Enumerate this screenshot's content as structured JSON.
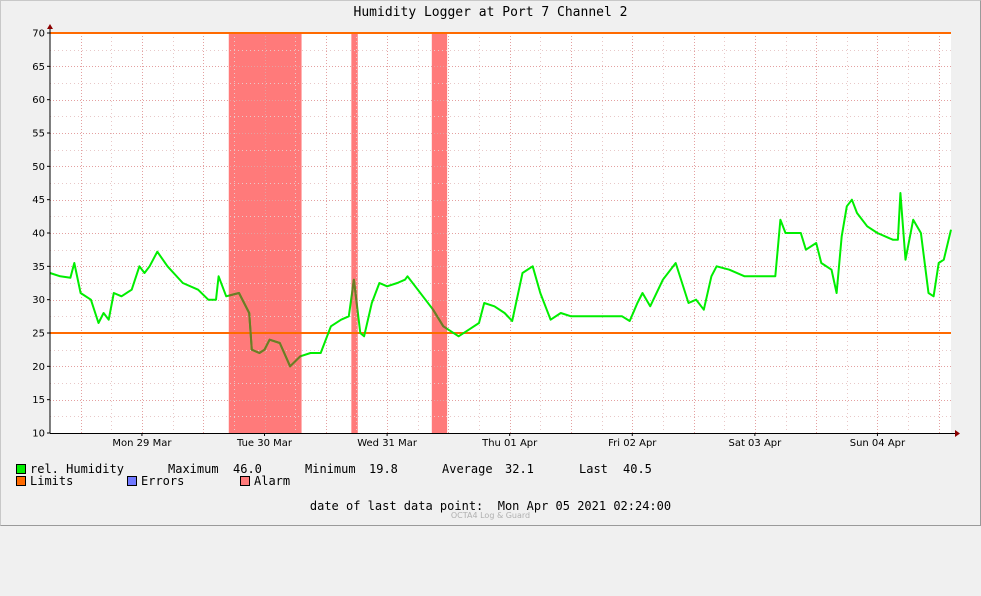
{
  "window": {
    "title": "Humidity Logger at Port 7 Channel 2"
  },
  "chart_data": {
    "type": "line",
    "title": "Humidity Logger at Port 7 Channel 2",
    "xlabel": "",
    "ylabel": "",
    "x_range": [
      "2021-03-28 18:00",
      "2021-04-05 02:24"
    ],
    "ylim": [
      10,
      70
    ],
    "y_ticks": [
      10,
      15,
      20,
      25,
      30,
      35,
      40,
      45,
      50,
      55,
      60,
      65,
      70
    ],
    "x_ticks": [
      {
        "label": "Mon 29 Mar",
        "at": "2021-03-29 12:00"
      },
      {
        "label": "Tue 30 Mar",
        "at": "2021-03-30 12:00"
      },
      {
        "label": "Wed 31 Mar",
        "at": "2021-03-31 12:00"
      },
      {
        "label": "Thu 01 Apr",
        "at": "2021-04-01 12:00"
      },
      {
        "label": "Fri 02 Apr",
        "at": "2021-04-02 12:00"
      },
      {
        "label": "Sat 03 Apr",
        "at": "2021-04-03 12:00"
      },
      {
        "label": "Sun 04 Apr",
        "at": "2021-04-04 12:00"
      }
    ],
    "grid": true,
    "legend_position": "bottom-left",
    "colors": {
      "humidity": "#00ee00",
      "humidity_in_alarm": "#6e7a26",
      "limits": "#ff6a00",
      "errors": "#7078ff",
      "alarm": "#ff7a7a",
      "grid_major": "#e4a0a0",
      "grid_minor": "#e8c8c8",
      "axis": "#000000",
      "arrow": "#8b0000",
      "plot_bg": "#ffffff"
    },
    "limits": [
      25,
      70
    ],
    "alarm_periods": [
      [
        "2021-03-30 05:00",
        "2021-03-30 19:15"
      ],
      [
        "2021-03-31 05:00",
        "2021-03-31 06:15"
      ],
      [
        "2021-03-31 20:45",
        "2021-03-31 23:45"
      ]
    ],
    "series": [
      {
        "name": "rel. Humidity",
        "points": [
          [
            "2021-03-28 18:00",
            34.0
          ],
          [
            "2021-03-28 20:00",
            33.5
          ],
          [
            "2021-03-28 22:00",
            33.3
          ],
          [
            "2021-03-28 22:45",
            35.5
          ],
          [
            "2021-03-29 00:00",
            31.0
          ],
          [
            "2021-03-29 02:00",
            30.0
          ],
          [
            "2021-03-29 03:30",
            26.5
          ],
          [
            "2021-03-29 04:30",
            28.0
          ],
          [
            "2021-03-29 05:30",
            27.0
          ],
          [
            "2021-03-29 06:30",
            31.0
          ],
          [
            "2021-03-29 08:00",
            30.5
          ],
          [
            "2021-03-29 10:00",
            31.5
          ],
          [
            "2021-03-29 11:30",
            35.0
          ],
          [
            "2021-03-29 12:30",
            34.0
          ],
          [
            "2021-03-29 13:30",
            35.0
          ],
          [
            "2021-03-29 15:00",
            37.2
          ],
          [
            "2021-03-29 17:00",
            35.0
          ],
          [
            "2021-03-29 20:00",
            32.5
          ],
          [
            "2021-03-29 23:00",
            31.5
          ],
          [
            "2021-03-30 01:00",
            30.0
          ],
          [
            "2021-03-30 02:30",
            30.0
          ],
          [
            "2021-03-30 03:00",
            33.5
          ],
          [
            "2021-03-30 04:30",
            30.5
          ],
          [
            "2021-03-30 07:00",
            31.0
          ],
          [
            "2021-03-30 09:00",
            28.0
          ],
          [
            "2021-03-30 09:30",
            22.5
          ],
          [
            "2021-03-30 11:00",
            22.0
          ],
          [
            "2021-03-30 12:00",
            22.5
          ],
          [
            "2021-03-30 13:00",
            24.0
          ],
          [
            "2021-03-30 15:00",
            23.5
          ],
          [
            "2021-03-30 17:00",
            20.0
          ],
          [
            "2021-03-30 19:00",
            21.5
          ],
          [
            "2021-03-30 21:00",
            22.0
          ],
          [
            "2021-03-30 23:00",
            22.0
          ],
          [
            "2021-03-31 01:00",
            26.0
          ],
          [
            "2021-03-31 03:00",
            27.0
          ],
          [
            "2021-03-31 04:30",
            27.5
          ],
          [
            "2021-03-31 05:30",
            33.0
          ],
          [
            "2021-03-31 06:45",
            25.0
          ],
          [
            "2021-03-31 07:30",
            24.5
          ],
          [
            "2021-03-31 09:00",
            29.5
          ],
          [
            "2021-03-31 10:30",
            32.5
          ],
          [
            "2021-03-31 12:00",
            32.0
          ],
          [
            "2021-03-31 14:00",
            32.5
          ],
          [
            "2021-03-31 15:30",
            33.0
          ],
          [
            "2021-03-31 16:00",
            33.5
          ],
          [
            "2021-03-31 18:00",
            31.5
          ],
          [
            "2021-03-31 21:00",
            28.5
          ],
          [
            "2021-03-31 23:00",
            26.0
          ],
          [
            "2021-04-01 02:00",
            24.5
          ],
          [
            "2021-04-01 04:00",
            25.5
          ],
          [
            "2021-04-01 06:00",
            26.5
          ],
          [
            "2021-04-01 07:00",
            29.5
          ],
          [
            "2021-04-01 09:00",
            29.0
          ],
          [
            "2021-04-01 11:00",
            28.0
          ],
          [
            "2021-04-01 12:30",
            26.8
          ],
          [
            "2021-04-01 14:30",
            34.0
          ],
          [
            "2021-04-01 16:30",
            35.0
          ],
          [
            "2021-04-01 18:00",
            31.0
          ],
          [
            "2021-04-01 20:00",
            27.0
          ],
          [
            "2021-04-01 22:00",
            28.0
          ],
          [
            "2021-04-02 00:00",
            27.5
          ],
          [
            "2021-04-02 03:00",
            27.5
          ],
          [
            "2021-04-02 06:00",
            27.5
          ],
          [
            "2021-04-02 10:00",
            27.5
          ],
          [
            "2021-04-02 11:30",
            26.8
          ],
          [
            "2021-04-02 13:00",
            29.5
          ],
          [
            "2021-04-02 14:00",
            31.0
          ],
          [
            "2021-04-02 15:30",
            29.0
          ],
          [
            "2021-04-02 18:00",
            33.0
          ],
          [
            "2021-04-02 20:30",
            35.5
          ],
          [
            "2021-04-02 23:00",
            29.5
          ],
          [
            "2021-04-03 00:30",
            30.0
          ],
          [
            "2021-04-03 02:00",
            28.5
          ],
          [
            "2021-04-03 03:30",
            33.5
          ],
          [
            "2021-04-03 04:30",
            35.0
          ],
          [
            "2021-04-03 07:00",
            34.5
          ],
          [
            "2021-04-03 10:00",
            33.5
          ],
          [
            "2021-04-03 16:00",
            33.5
          ],
          [
            "2021-04-03 17:00",
            42.0
          ],
          [
            "2021-04-03 18:00",
            40.0
          ],
          [
            "2021-04-03 21:00",
            40.0
          ],
          [
            "2021-04-03 22:00",
            37.5
          ],
          [
            "2021-04-04 00:00",
            38.5
          ],
          [
            "2021-04-04 01:00",
            35.5
          ],
          [
            "2021-04-04 03:00",
            34.5
          ],
          [
            "2021-04-04 04:00",
            31.0
          ],
          [
            "2021-04-04 05:00",
            39.5
          ],
          [
            "2021-04-04 06:00",
            44.0
          ],
          [
            "2021-04-04 07:00",
            45.0
          ],
          [
            "2021-04-04 08:00",
            43.0
          ],
          [
            "2021-04-04 10:00",
            41.0
          ],
          [
            "2021-04-04 12:00",
            40.0
          ],
          [
            "2021-04-04 15:00",
            39.0
          ],
          [
            "2021-04-04 16:00",
            39.0
          ],
          [
            "2021-04-04 16:30",
            46.0
          ],
          [
            "2021-04-04 17:30",
            36.0
          ],
          [
            "2021-04-04 19:00",
            42.0
          ],
          [
            "2021-04-04 20:30",
            40.0
          ],
          [
            "2021-04-04 22:00",
            31.0
          ],
          [
            "2021-04-04 23:00",
            30.5
          ],
          [
            "2021-04-05 00:00",
            35.5
          ],
          [
            "2021-04-05 01:00",
            36.0
          ],
          [
            "2021-04-05 02:24",
            40.5
          ]
        ]
      }
    ]
  },
  "legend": {
    "humidity_label": "rel. Humidity",
    "maximum_label": "Maximum",
    "maximum_value": "46.0",
    "minimum_label": "Minimum",
    "minimum_value": "19.8",
    "average_label": "Average",
    "average_value": "32.1",
    "last_label": "Last",
    "last_value": "40.5",
    "limits_label": "Limits",
    "errors_label": "Errors",
    "alarm_label": "Alarm"
  },
  "footer": {
    "last_point_label": "date of last data point:",
    "last_point_value": "Mon Apr 05 2021 02:24:00",
    "watermark": "OCTA4 Log & Guard"
  }
}
